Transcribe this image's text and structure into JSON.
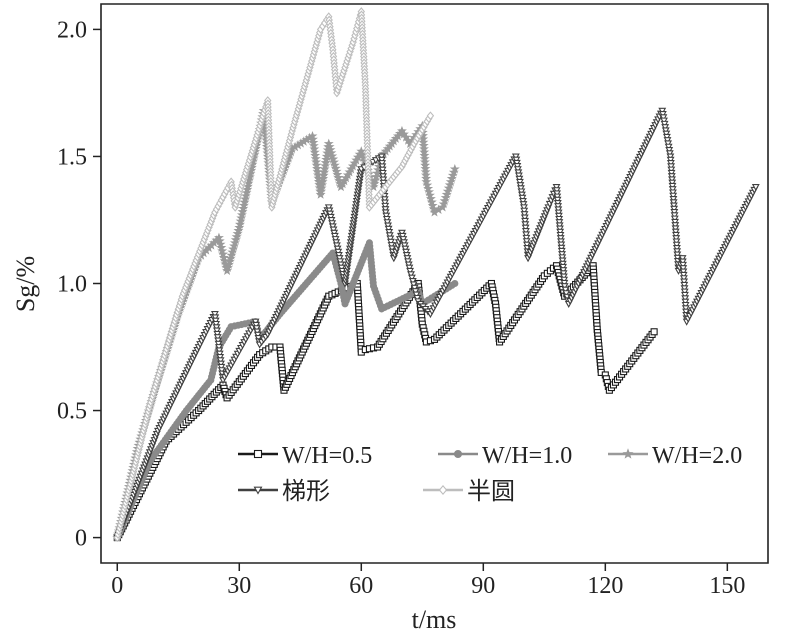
{
  "chart_data": {
    "type": "line",
    "xlabel": "t/ms",
    "ylabel": "Sg/%",
    "xlim": [
      -4,
      160
    ],
    "ylim": [
      -0.1,
      2.1
    ],
    "x_ticks": [
      0,
      30,
      60,
      90,
      120,
      150
    ],
    "y_ticks": [
      0,
      0.5,
      1.0,
      1.5,
      2.0
    ],
    "x_tick_labels": [
      "0",
      "30",
      "60",
      "90",
      "120",
      "150"
    ],
    "y_tick_labels": [
      "0",
      "0.5",
      "1.0",
      "1.5",
      "2.0"
    ],
    "grid": false,
    "legend_position": "bottom-right",
    "series": [
      {
        "name": "W/H=0.5",
        "color": "#1a1a1a",
        "marker": "square",
        "x": [
          0,
          12,
          20,
          26,
          27,
          35,
          38,
          40,
          41,
          52,
          59,
          60,
          61,
          64,
          74,
          75,
          76,
          78,
          92,
          93,
          94,
          105,
          108,
          110,
          117,
          118,
          119,
          120,
          121,
          132
        ],
        "y": [
          0,
          0.38,
          0.5,
          0.6,
          0.55,
          0.72,
          0.75,
          0.75,
          0.58,
          0.95,
          1.0,
          0.73,
          0.74,
          0.75,
          1.0,
          0.84,
          0.77,
          0.78,
          1.0,
          0.92,
          0.77,
          1.03,
          1.07,
          0.95,
          1.07,
          0.82,
          0.65,
          0.64,
          0.58,
          0.81
        ]
      },
      {
        "name": "W/H=1.0",
        "color": "#8a8a8a",
        "marker": "circle",
        "x": [
          0,
          8,
          17,
          23,
          25,
          28,
          34,
          35,
          40,
          53,
          55,
          56,
          62,
          63,
          65,
          74,
          75,
          78,
          83
        ],
        "y": [
          0,
          0.3,
          0.5,
          0.62,
          0.75,
          0.83,
          0.85,
          0.78,
          0.88,
          1.12,
          1.0,
          0.92,
          1.16,
          0.99,
          0.9,
          0.97,
          0.92,
          0.95,
          1.0
        ]
      },
      {
        "name": "W/H=2.0",
        "color": "#9a9a9a",
        "marker": "star",
        "x": [
          0,
          5,
          10,
          15,
          20,
          25,
          27,
          30,
          36,
          38,
          43,
          48,
          50,
          52,
          55,
          60,
          63,
          65,
          70,
          72,
          75,
          76,
          78,
          80,
          83
        ],
        "y": [
          0,
          0.35,
          0.62,
          0.88,
          1.1,
          1.18,
          1.05,
          1.22,
          1.68,
          1.32,
          1.53,
          1.58,
          1.35,
          1.55,
          1.38,
          1.52,
          1.38,
          1.5,
          1.6,
          1.55,
          1.62,
          1.4,
          1.28,
          1.3,
          1.45
        ]
      },
      {
        "name": "梯形",
        "color": "#404040",
        "marker": "triangle-down",
        "x": [
          0,
          10,
          20,
          24,
          26,
          34,
          35,
          37,
          52,
          54,
          56,
          60,
          65,
          66,
          68,
          70,
          72,
          74,
          77,
          98,
          100,
          101,
          106,
          108,
          110,
          111,
          134,
          136,
          138,
          139,
          140,
          157
        ],
        "y": [
          0,
          0.42,
          0.75,
          0.88,
          0.62,
          0.85,
          0.76,
          0.8,
          1.3,
          1.15,
          1.0,
          1.45,
          1.5,
          1.28,
          1.1,
          1.2,
          1.05,
          0.93,
          0.88,
          1.5,
          1.3,
          1.1,
          1.3,
          1.38,
          0.99,
          0.92,
          1.68,
          1.5,
          1.05,
          1.1,
          0.85,
          1.38
        ]
      },
      {
        "name": "半圆",
        "color": "#bdbdbd",
        "marker": "diamond",
        "x": [
          0,
          8,
          16,
          24,
          28,
          29,
          37,
          38,
          43,
          50,
          52,
          53,
          54,
          58,
          60,
          61,
          62,
          70,
          73,
          77
        ],
        "y": [
          0,
          0.52,
          0.95,
          1.28,
          1.4,
          1.3,
          1.72,
          1.3,
          1.6,
          2.0,
          2.05,
          1.92,
          1.75,
          1.95,
          2.07,
          1.78,
          1.3,
          1.46,
          1.55,
          1.66
        ]
      }
    ]
  }
}
